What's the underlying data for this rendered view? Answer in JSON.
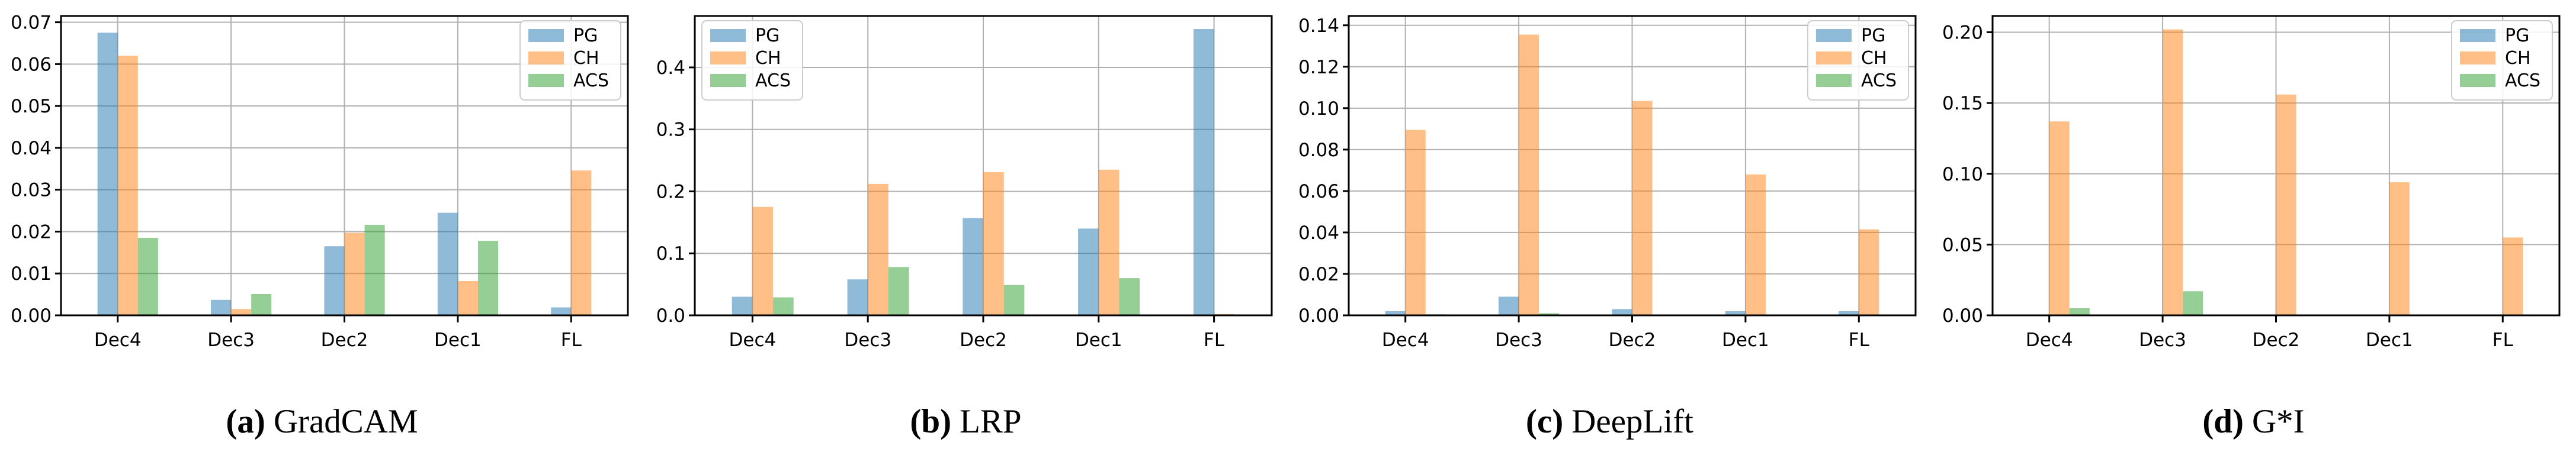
{
  "palette": {
    "pg": "#1f77b4",
    "ch": "#ff7f0e",
    "acs": "#2ca02c",
    "bar_opacity": 0.5,
    "grid": "#b0b0b0",
    "spine": "#000000",
    "legend_border": "#cccccc",
    "legend_bg": "#ffffff",
    "text": "#000000"
  },
  "chart_data": [
    {
      "type": "bar",
      "title": "(a) GradCAM",
      "caption": {
        "prefix": "(a)",
        "label": "GradCAM"
      },
      "xlabel": "",
      "ylabel": "",
      "categories": [
        "Dec4",
        "Dec3",
        "Dec2",
        "Dec1",
        "FL"
      ],
      "series": [
        {
          "name": "PG",
          "color_key": "pg",
          "values": [
            0.0675,
            0.0037,
            0.0165,
            0.0245,
            0.0019
          ]
        },
        {
          "name": "CH",
          "color_key": "ch",
          "values": [
            0.062,
            0.0015,
            0.0197,
            0.0082,
            0.0346
          ]
        },
        {
          "name": "ACS",
          "color_key": "acs",
          "values": [
            0.0185,
            0.0051,
            0.0216,
            0.0178,
            0.0
          ]
        }
      ],
      "ylim": [
        0,
        0.0715
      ],
      "yticks": [
        0,
        0.01,
        0.02,
        0.03,
        0.04,
        0.05,
        0.06,
        0.07
      ],
      "ytick_labels": [
        "0.00",
        "0.01",
        "0.02",
        "0.03",
        "0.04",
        "0.05",
        "0.06",
        "0.07"
      ],
      "grid": true,
      "legend_position": "top-right",
      "legend_entries": [
        "PG",
        "CH",
        "ACS"
      ]
    },
    {
      "type": "bar",
      "title": "(b) LRP",
      "caption": {
        "prefix": "(b)",
        "label": "LRP"
      },
      "xlabel": "",
      "ylabel": "",
      "categories": [
        "Dec4",
        "Dec3",
        "Dec2",
        "Dec1",
        "FL"
      ],
      "series": [
        {
          "name": "PG",
          "color_key": "pg",
          "values": [
            0.03,
            0.058,
            0.157,
            0.14,
            0.462
          ]
        },
        {
          "name": "CH",
          "color_key": "ch",
          "values": [
            0.175,
            0.212,
            0.231,
            0.235,
            0.002
          ]
        },
        {
          "name": "ACS",
          "color_key": "acs",
          "values": [
            0.029,
            0.078,
            0.049,
            0.06,
            0.0
          ]
        }
      ],
      "ylim": [
        0,
        0.483
      ],
      "yticks": [
        0,
        0.1,
        0.2,
        0.3,
        0.4
      ],
      "ytick_labels": [
        "0.0",
        "0.1",
        "0.2",
        "0.3",
        "0.4"
      ],
      "grid": true,
      "legend_position": "top-left",
      "legend_entries": [
        "PG",
        "CH",
        "ACS"
      ]
    },
    {
      "type": "bar",
      "title": "(c) DeepLift",
      "caption": {
        "prefix": "(c)",
        "label": "DeepLift"
      },
      "xlabel": "",
      "ylabel": "",
      "categories": [
        "Dec4",
        "Dec3",
        "Dec2",
        "Dec1",
        "FL"
      ],
      "series": [
        {
          "name": "PG",
          "color_key": "pg",
          "values": [
            0.002,
            0.009,
            0.003,
            0.002,
            0.002
          ]
        },
        {
          "name": "CH",
          "color_key": "ch",
          "values": [
            0.0895,
            0.1355,
            0.1035,
            0.068,
            0.0415
          ]
        },
        {
          "name": "ACS",
          "color_key": "acs",
          "values": [
            0.0005,
            0.001,
            0.0,
            0.0,
            0.0
          ]
        }
      ],
      "ylim": [
        0,
        0.1445
      ],
      "yticks": [
        0,
        0.02,
        0.04,
        0.06,
        0.08,
        0.1,
        0.12,
        0.14
      ],
      "ytick_labels": [
        "0.00",
        "0.02",
        "0.04",
        "0.06",
        "0.08",
        "0.10",
        "0.12",
        "0.14"
      ],
      "grid": true,
      "legend_position": "top-right",
      "legend_entries": [
        "PG",
        "CH",
        "ACS"
      ]
    },
    {
      "type": "bar",
      "title": "(d) G*I",
      "caption": {
        "prefix": "(d)",
        "label": "G*I"
      },
      "xlabel": "",
      "ylabel": "",
      "categories": [
        "Dec4",
        "Dec3",
        "Dec2",
        "Dec1",
        "FL"
      ],
      "series": [
        {
          "name": "PG",
          "color_key": "pg",
          "values": [
            0.0,
            0.0,
            0.0,
            0.0,
            0.0
          ]
        },
        {
          "name": "CH",
          "color_key": "ch",
          "values": [
            0.137,
            0.202,
            0.156,
            0.094,
            0.055
          ]
        },
        {
          "name": "ACS",
          "color_key": "acs",
          "values": [
            0.005,
            0.017,
            0.0,
            0.0,
            0.0
          ]
        }
      ],
      "ylim": [
        0,
        0.2115
      ],
      "yticks": [
        0,
        0.05,
        0.1,
        0.15,
        0.2
      ],
      "ytick_labels": [
        "0.00",
        "0.05",
        "0.10",
        "0.15",
        "0.20"
      ],
      "grid": true,
      "legend_position": "top-right",
      "legend_entries": [
        "PG",
        "CH",
        "ACS"
      ]
    }
  ]
}
